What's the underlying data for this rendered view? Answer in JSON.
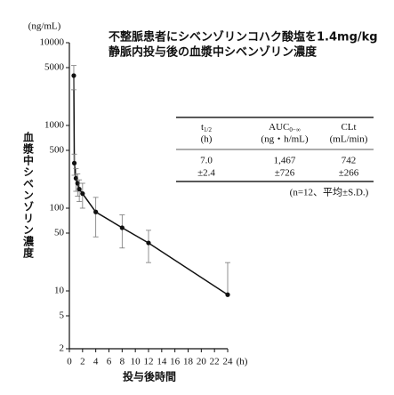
{
  "chart_data": {
    "type": "line",
    "title": [
      "不整脈患者にシベンゾリンコハク酸塩を1.4mg/kg",
      "静脈内投与後の血漿中シベンゾリン濃度"
    ],
    "y_unit": "(ng/mL)",
    "ylabel": "血漿中シベンゾリン濃度",
    "xlabel": "投与後時間",
    "x_unit": "(h)",
    "x": [
      0.67,
      0.75,
      1,
      1.25,
      1.5,
      2,
      4,
      8,
      12,
      24
    ],
    "values": [
      4000,
      350,
      230,
      200,
      170,
      150,
      90,
      58,
      38,
      9
    ],
    "errors": [
      1300,
      100,
      70,
      60,
      50,
      50,
      45,
      25,
      16,
      13
    ],
    "color": "#111111",
    "xlim": [
      0,
      24
    ],
    "xticks": [
      0,
      2,
      4,
      6,
      8,
      10,
      12,
      14,
      16,
      18,
      20,
      22,
      24
    ],
    "ylim": [
      2,
      10000
    ],
    "yticks": [
      2,
      5,
      10,
      50,
      100,
      500,
      1000,
      5000,
      10000
    ],
    "log_y": true
  },
  "table": {
    "headers": [
      {
        "main": "t",
        "sub": "1/2",
        "unit": "(h)"
      },
      {
        "main": "AUC",
        "sub": "0−∞",
        "unit": "(ng・h/mL)"
      },
      {
        "main": "CLt",
        "sub": "",
        "unit": "(mL/min)"
      }
    ],
    "rows": [
      [
        "7.0",
        "1,467",
        "742"
      ],
      [
        "±2.4",
        "±726",
        "±266"
      ]
    ],
    "note": "(n=12、平均±S.D.)"
  }
}
